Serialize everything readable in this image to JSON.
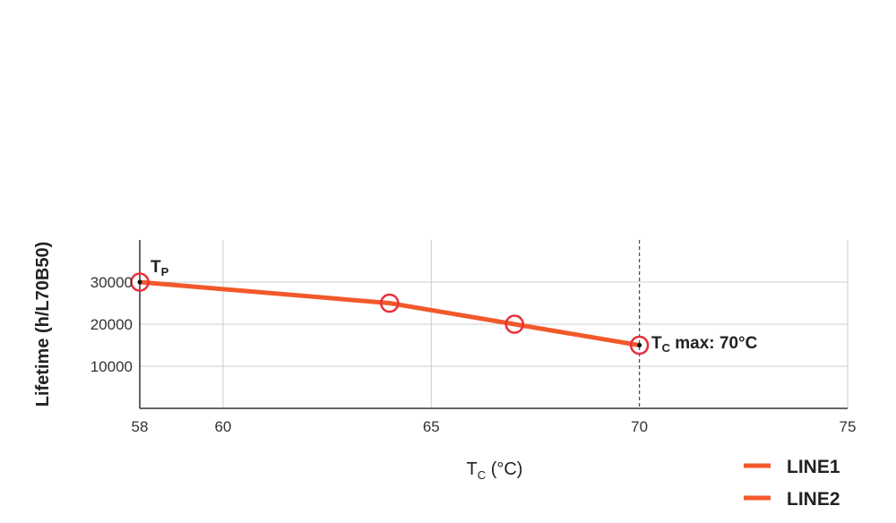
{
  "chart_data": {
    "type": "line",
    "xlabel_main": "T",
    "xlabel_sub": "C",
    "xlabel_rest": " (°C)",
    "ylabel": "Lifetime (h/L70B50)",
    "xlim": [
      58,
      75
    ],
    "ylim": [
      0,
      40000
    ],
    "xticks": [
      58,
      60,
      65,
      70,
      75
    ],
    "yticks": [
      10000,
      20000,
      30000
    ],
    "ytick_labels": [
      "10000",
      "20000",
      "30000"
    ],
    "vertical_gridlines": [
      60,
      65,
      70
    ],
    "grid": true,
    "marker_line_x": 70,
    "series": [
      {
        "name": "LINE1",
        "color": "#f2592a",
        "points": [
          {
            "x": 58,
            "y": 30000
          },
          {
            "x": 64,
            "y": 25000
          },
          {
            "x": 67,
            "y": 20000
          },
          {
            "x": 70,
            "y": 15000
          }
        ]
      }
    ],
    "legend": {
      "placement": "bottom-right",
      "entries": [
        {
          "label": "LINE1",
          "color": "#f2592a"
        },
        {
          "label": "LINE2",
          "color": "#f2592a"
        }
      ]
    },
    "annotations": {
      "tp_main": "T",
      "tp_sub": "P",
      "tcmax_main": "T",
      "tcmax_sub": "C",
      "tcmax_rest": " max: 70°C"
    },
    "colors": {
      "line": "#f2592a",
      "marker_ring": "#e8303a",
      "grid": "#cccccc",
      "axis": "#333333"
    }
  }
}
